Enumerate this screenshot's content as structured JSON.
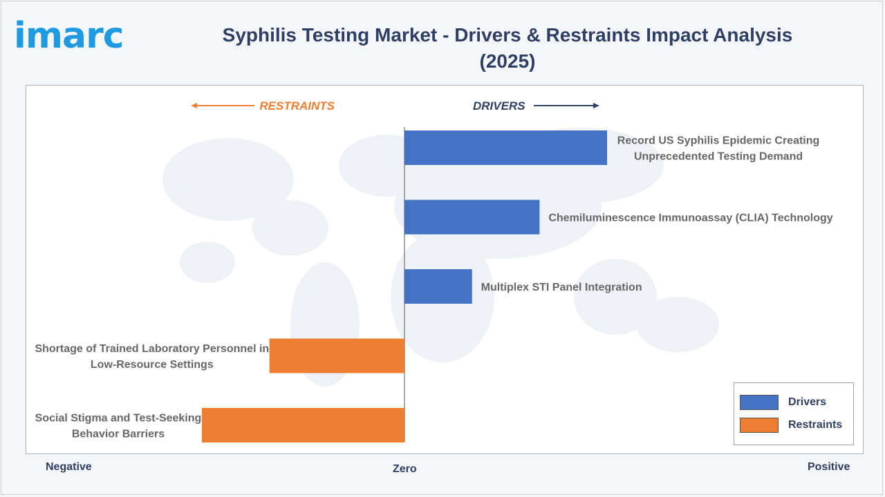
{
  "header": {
    "logo_text": "imarc",
    "title": "Syphilis Testing Market - Drivers & Restraints Impact Analysis (2025)"
  },
  "colors": {
    "driver": "#4472c4",
    "restraint": "#ed7d31",
    "arrow_restraint": "#ed7d31",
    "arrow_driver": "#2e3f64",
    "text": "#2e3f64",
    "bar_label": "#666666"
  },
  "chart_data": {
    "type": "bar",
    "orientation": "horizontal",
    "direction_labels": {
      "restraints": "RESTRAINTS",
      "drivers": "DRIVERS"
    },
    "axis_labels": {
      "negative": "Negative",
      "zero": "Zero",
      "positive": "Positive"
    },
    "xlim": [
      -5.6,
      6.8
    ],
    "bars": [
      {
        "label": "Record US Syphilis Epidemic Creating Unprecedented Testing Demand",
        "lines": [
          "Record US Syphilis Epidemic Creating",
          "Unprecedented Testing Demand"
        ],
        "value": 3.0,
        "series": "Drivers"
      },
      {
        "label": "Chemiluminescence Immunoassay (CLIA) Technology",
        "lines": [
          "Chemiluminescence Immunoassay (CLIA) Technology"
        ],
        "value": 2.0,
        "series": "Drivers"
      },
      {
        "label": "Multiplex STI Panel Integration",
        "lines": [
          "Multiplex STI Panel Integration"
        ],
        "value": 1.0,
        "series": "Drivers"
      },
      {
        "label": "Shortage of Trained Laboratory Personnel in Low-Resource Settings",
        "lines": [
          "Shortage of Trained Laboratory Personnel in",
          "Low-Resource Settings"
        ],
        "value": -2.0,
        "series": "Restraints"
      },
      {
        "label": "Social Stigma and Test-Seeking Behavior Barriers",
        "lines": [
          "Social Stigma and Test-Seeking",
          "Behavior Barriers"
        ],
        "value": -3.0,
        "series": "Restraints"
      }
    ],
    "legend": {
      "position": "bottom-right",
      "items": [
        {
          "name": "Drivers",
          "color": "#4472c4"
        },
        {
          "name": "Restraints",
          "color": "#ed7d31"
        }
      ]
    }
  }
}
